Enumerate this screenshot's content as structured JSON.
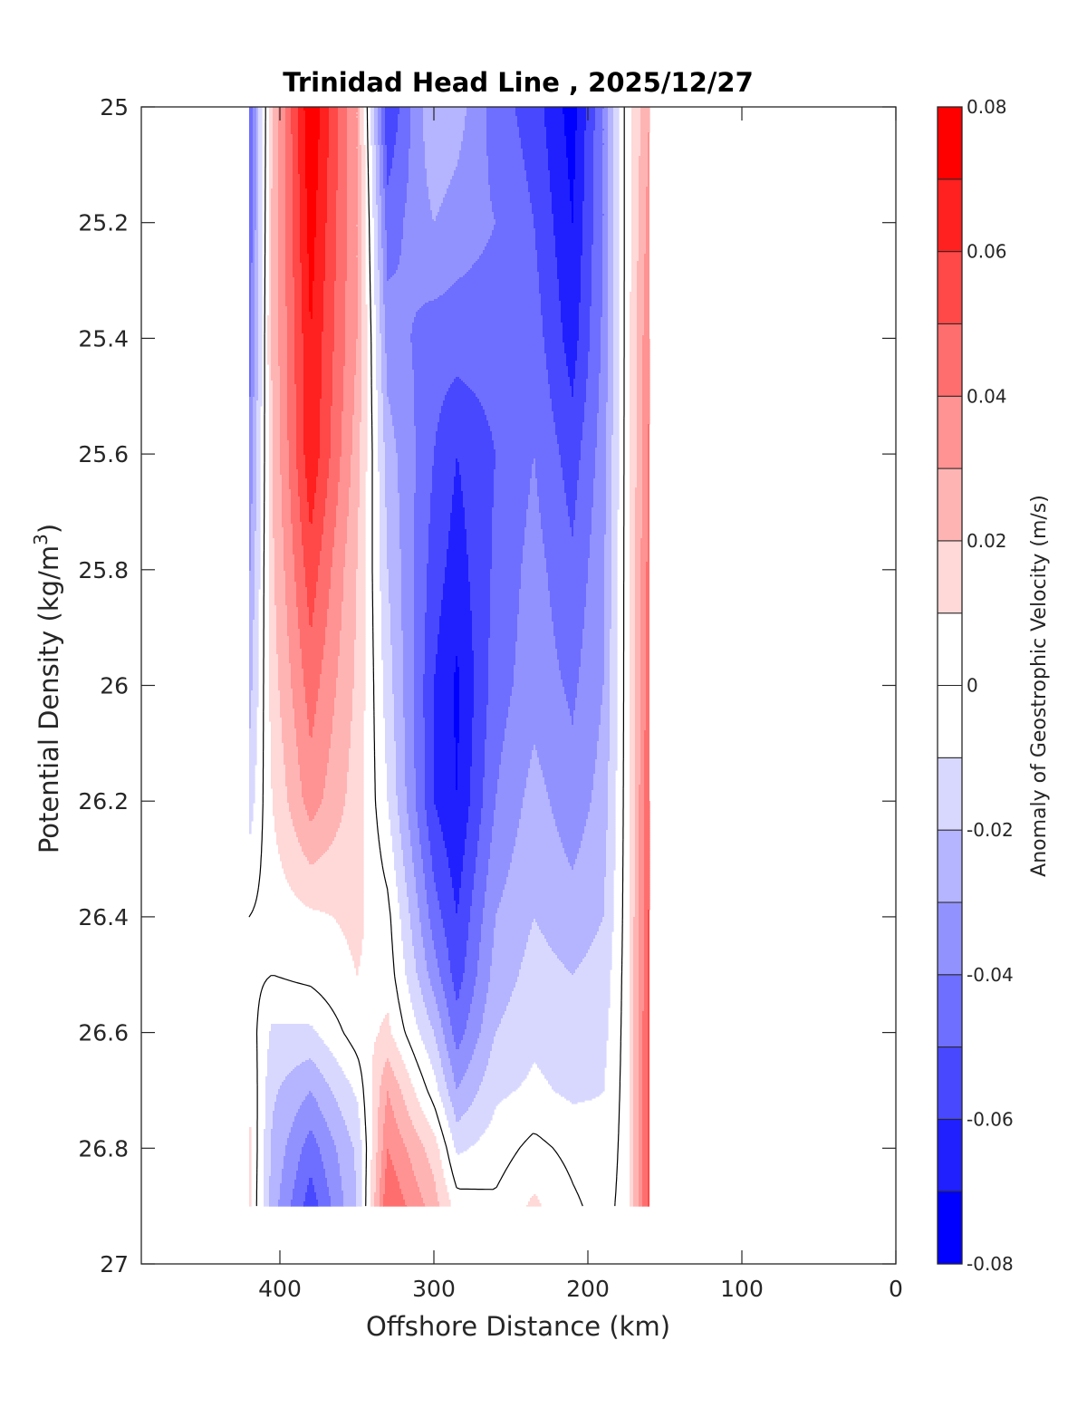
{
  "chart_data": {
    "type": "heatmap",
    "subtype": "filled-contour",
    "title": "Trinidad Head Line , 2025/12/27",
    "xlabel": "Offshore Distance (km)",
    "ylabel": "Potential Density (kg/m",
    "ylabel_superscript": "3",
    "ylabel_suffix": ")",
    "colorbar_label": "Anomaly of Geostrophic Velocity (m/s)",
    "xlim": [
      490,
      0
    ],
    "ylim": [
      27,
      25
    ],
    "x_reversed": true,
    "y_reversed": true,
    "xticks": [
      400,
      300,
      200,
      100,
      0
    ],
    "xtick_labels": [
      "400",
      "300",
      "200",
      "100",
      "0"
    ],
    "yticks": [
      25,
      25.2,
      25.4,
      25.6,
      25.8,
      26,
      26.2,
      26.4,
      26.6,
      26.8,
      27
    ],
    "ytick_labels": [
      "25",
      "25.2",
      "25.4",
      "25.6",
      "25.8",
      "26",
      "26.2",
      "26.4",
      "26.6",
      "26.8",
      "27"
    ],
    "clim": [
      -0.08,
      0.08
    ],
    "contour_levels": [
      -0.08,
      -0.07,
      -0.06,
      -0.05,
      -0.04,
      -0.03,
      -0.02,
      -0.01,
      0,
      0.01,
      0.02,
      0.03,
      0.04,
      0.05,
      0.06,
      0.07,
      0.08
    ],
    "colorbar_ticks": [
      0.08,
      0.06,
      0.04,
      0.02,
      0,
      -0.02,
      -0.04,
      -0.06,
      -0.08
    ],
    "colorbar_tick_labels": [
      "0.08",
      "0.06",
      "0.04",
      "0.02",
      "0",
      "-0.02",
      "-0.04",
      "-0.06",
      "-0.08"
    ],
    "colormap": [
      "#0000ff",
      "#2020ff",
      "#4848ff",
      "#6e6eff",
      "#9292ff",
      "#b4b4ff",
      "#d8d8ff",
      "#ffffff",
      "#ffffff",
      "#ffd8d8",
      "#ffb4b4",
      "#ff9292",
      "#ff6e6e",
      "#ff4848",
      "#ff2020",
      "#ff0000"
    ],
    "zero_contour_color": "#000000",
    "x_stations_km": [
      420,
      405,
      380,
      350,
      330,
      300,
      285,
      260,
      235,
      210,
      190,
      175,
      160
    ],
    "density_levels": [
      25.0,
      25.2,
      25.4,
      25.6,
      25.8,
      26.0,
      26.2,
      26.4,
      26.5,
      26.6,
      26.7,
      26.8,
      26.9
    ],
    "values": [
      [
        -0.05,
        0.02,
        0.08,
        0.03,
        -0.06,
        -0.02,
        -0.025,
        -0.045,
        -0.055,
        -0.075,
        -0.04,
        0.004,
        0.03
      ],
      [
        -0.05,
        0.022,
        0.075,
        0.03,
        -0.045,
        -0.03,
        -0.035,
        -0.04,
        -0.05,
        -0.07,
        -0.04,
        0.004,
        0.035
      ],
      [
        -0.045,
        0.022,
        0.07,
        0.03,
        -0.035,
        -0.045,
        -0.045,
        -0.045,
        -0.045,
        -0.065,
        -0.038,
        0.004,
        0.04
      ],
      [
        -0.04,
        0.02,
        0.068,
        0.025,
        -0.025,
        -0.05,
        -0.06,
        -0.05,
        -0.04,
        -0.055,
        -0.035,
        0.004,
        0.042
      ],
      [
        -0.032,
        0.018,
        0.056,
        0.02,
        -0.02,
        -0.055,
        -0.065,
        -0.048,
        -0.036,
        -0.048,
        -0.032,
        0.004,
        0.045
      ],
      [
        -0.025,
        0.015,
        0.045,
        0.018,
        -0.015,
        -0.06,
        -0.072,
        -0.045,
        -0.034,
        -0.042,
        -0.03,
        0.004,
        0.048
      ],
      [
        -0.015,
        0.01,
        0.035,
        0.015,
        -0.01,
        -0.06,
        -0.07,
        -0.04,
        -0.026,
        -0.036,
        -0.026,
        0.004,
        0.05
      ],
      [
        0.0,
        0.004,
        0.008,
        0.012,
        0.003,
        -0.045,
        -0.06,
        -0.03,
        -0.02,
        -0.026,
        -0.02,
        0.004,
        0.052
      ],
      [
        0.003,
        0.0,
        0.003,
        0.01,
        0.006,
        -0.035,
        -0.055,
        -0.026,
        -0.016,
        -0.02,
        -0.016,
        0.004,
        0.053
      ],
      [
        0.006,
        -0.012,
        -0.012,
        0.005,
        0.012,
        -0.02,
        -0.045,
        -0.02,
        -0.012,
        -0.015,
        -0.013,
        0.004,
        0.054
      ],
      [
        0.01,
        -0.018,
        -0.03,
        -0.008,
        0.03,
        -0.005,
        -0.03,
        -0.012,
        -0.008,
        -0.012,
        -0.01,
        0.004,
        0.055
      ],
      [
        0.012,
        -0.022,
        -0.045,
        -0.018,
        0.04,
        0.015,
        -0.012,
        -0.005,
        0.003,
        -0.003,
        -0.007,
        0.004,
        0.055
      ],
      [
        0.012,
        -0.025,
        -0.056,
        -0.02,
        0.05,
        0.025,
        0.005,
        0.002,
        0.012,
        0.002,
        -0.004,
        0.004,
        0.055
      ]
    ]
  }
}
